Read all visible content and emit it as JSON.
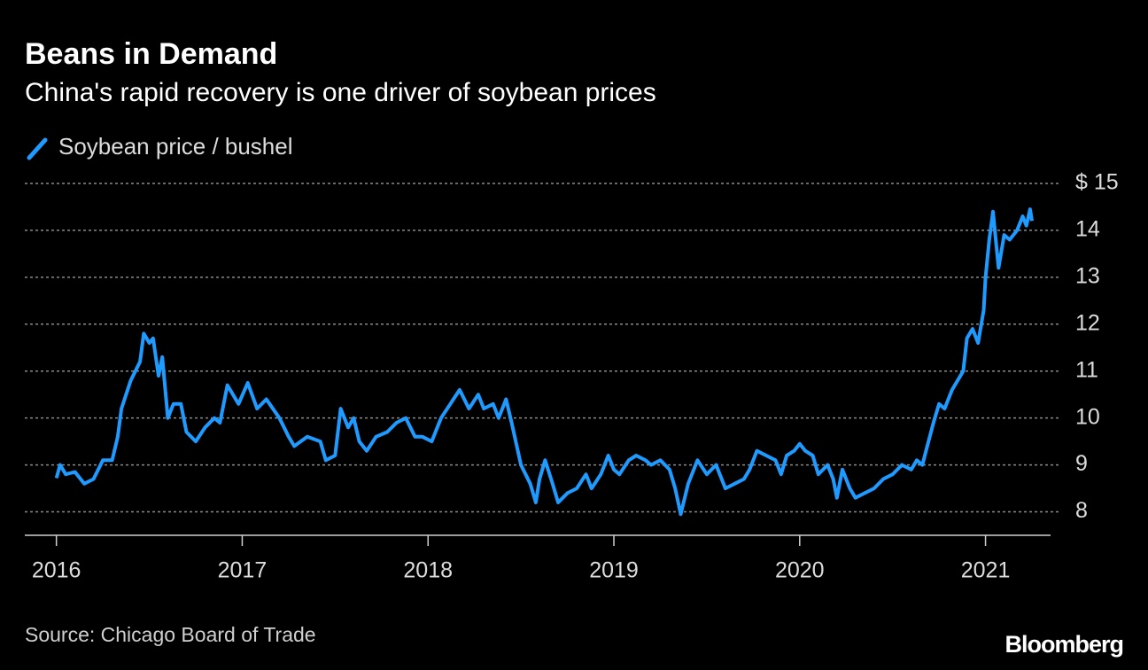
{
  "chart_data": {
    "type": "line",
    "title": "Beans in Demand",
    "subtitle": "China's rapid recovery is one driver of soybean prices",
    "source": "Source: Chicago Board of Trade",
    "brand": "Bloomberg",
    "x": [
      2016.0,
      2016.02,
      2016.05,
      2016.1,
      2016.15,
      2016.2,
      2016.25,
      2016.3,
      2016.33,
      2016.35,
      2016.4,
      2016.45,
      2016.47,
      2016.5,
      2016.52,
      2016.55,
      2016.57,
      2016.6,
      2016.63,
      2016.67,
      2016.7,
      2016.75,
      2016.8,
      2016.85,
      2016.88,
      2016.92,
      2016.98,
      2017.03,
      2017.08,
      2017.13,
      2017.2,
      2017.25,
      2017.28,
      2017.35,
      2017.42,
      2017.45,
      2017.5,
      2017.53,
      2017.57,
      2017.6,
      2017.63,
      2017.67,
      2017.72,
      2017.78,
      2017.83,
      2017.88,
      2017.93,
      2017.97,
      2018.02,
      2018.07,
      2018.12,
      2018.17,
      2018.22,
      2018.27,
      2018.3,
      2018.35,
      2018.38,
      2018.42,
      2018.45,
      2018.5,
      2018.55,
      2018.58,
      2018.6,
      2018.63,
      2018.67,
      2018.7,
      2018.75,
      2018.8,
      2018.85,
      2018.88,
      2018.93,
      2018.97,
      2019.0,
      2019.03,
      2019.08,
      2019.12,
      2019.17,
      2019.2,
      2019.25,
      2019.3,
      2019.33,
      2019.36,
      2019.4,
      2019.45,
      2019.5,
      2019.55,
      2019.6,
      2019.65,
      2019.7,
      2019.73,
      2019.77,
      2019.82,
      2019.87,
      2019.9,
      2019.93,
      2019.97,
      2020.0,
      2020.03,
      2020.07,
      2020.1,
      2020.15,
      2020.18,
      2020.2,
      2020.23,
      2020.27,
      2020.3,
      2020.35,
      2020.4,
      2020.45,
      2020.5,
      2020.55,
      2020.6,
      2020.63,
      2020.66,
      2020.68,
      2020.72,
      2020.75,
      2020.78,
      2020.82,
      2020.85,
      2020.88,
      2020.9,
      2020.93,
      2020.96,
      2020.99,
      2021.0,
      2021.02,
      2021.04,
      2021.07,
      2021.1,
      2021.13,
      2021.17,
      2021.2,
      2021.22,
      2021.24,
      2021.25
    ],
    "series": [
      {
        "name": "Soybean price / bushel",
        "color": "#1f9bff",
        "values": [
          8.72,
          9.0,
          8.8,
          8.85,
          8.6,
          8.7,
          9.1,
          9.1,
          9.6,
          10.2,
          10.8,
          11.2,
          11.8,
          11.6,
          11.7,
          10.9,
          11.3,
          10.0,
          10.3,
          10.3,
          9.7,
          9.5,
          9.8,
          10.0,
          9.9,
          10.7,
          10.3,
          10.75,
          10.2,
          10.4,
          10.0,
          9.6,
          9.4,
          9.6,
          9.5,
          9.1,
          9.2,
          10.2,
          9.8,
          10.0,
          9.5,
          9.3,
          9.6,
          9.7,
          9.9,
          10.0,
          9.6,
          9.6,
          9.5,
          10.0,
          10.3,
          10.6,
          10.2,
          10.5,
          10.2,
          10.3,
          10.0,
          10.4,
          9.9,
          9.0,
          8.6,
          8.2,
          8.7,
          9.1,
          8.6,
          8.2,
          8.4,
          8.5,
          8.8,
          8.5,
          8.8,
          9.2,
          8.9,
          8.8,
          9.1,
          9.2,
          9.1,
          9.0,
          9.1,
          8.9,
          8.5,
          7.95,
          8.6,
          9.1,
          8.8,
          9.0,
          8.5,
          8.6,
          8.7,
          8.9,
          9.3,
          9.2,
          9.1,
          8.8,
          9.2,
          9.3,
          9.45,
          9.3,
          9.2,
          8.8,
          9.0,
          8.7,
          8.3,
          8.9,
          8.5,
          8.3,
          8.4,
          8.5,
          8.7,
          8.8,
          9.0,
          8.9,
          9.1,
          9.0,
          9.3,
          9.9,
          10.3,
          10.2,
          10.6,
          10.8,
          11.0,
          11.7,
          11.9,
          11.6,
          12.3,
          13.0,
          13.8,
          14.4,
          13.2,
          13.9,
          13.8,
          14.0,
          14.3,
          14.1,
          14.45,
          14.2
        ]
      }
    ],
    "xlim": [
      2015.83,
      2021.35
    ],
    "xticks": [
      2016,
      2017,
      2018,
      2019,
      2020,
      2021
    ],
    "ylim": [
      7.5,
      15
    ],
    "yticks": [
      8,
      9,
      10,
      11,
      12,
      13,
      14,
      {
        "value": 15,
        "label": "$ 15"
      }
    ],
    "grid": true
  }
}
